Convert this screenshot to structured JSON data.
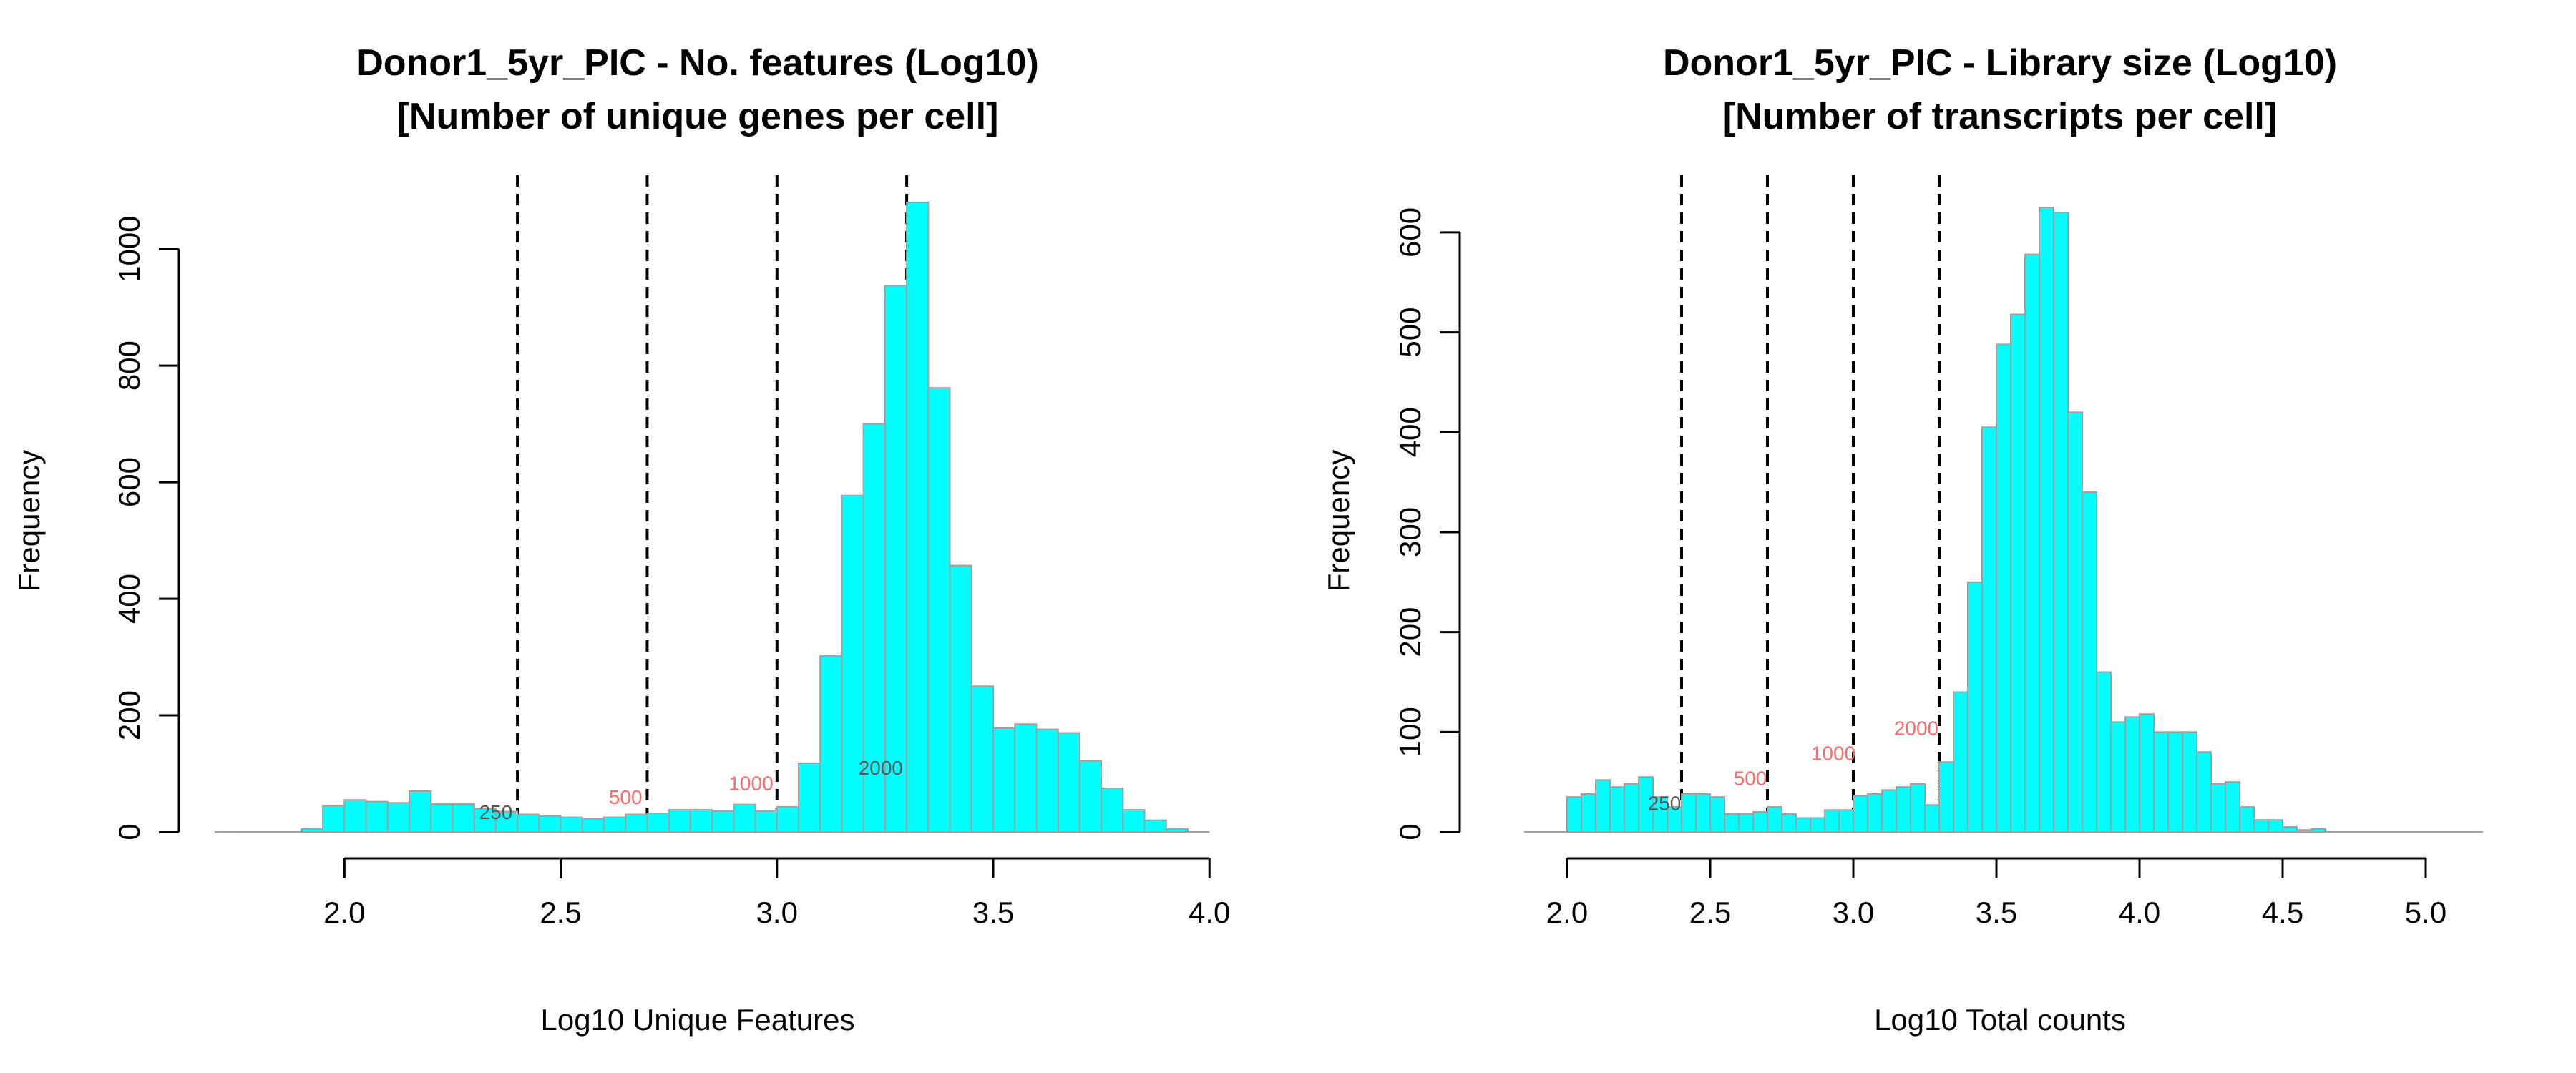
{
  "colors": {
    "bar_fill": "#00FFFF",
    "bar_stroke": "#A0A0A0",
    "cutoff_line": "#000000",
    "cut_label_low": "#555555",
    "cut_label_high": "#FF6B6B"
  },
  "chart_data": [
    {
      "type": "bar",
      "title": "Donor1_5yr_PIC - No. features (Log10)",
      "subtitle": "[Number of unique genes per cell]",
      "xlabel": "Log10 Unique Features",
      "ylabel": "Frequency",
      "xlim": [
        1.7,
        3.95
      ],
      "ylim": [
        0,
        1080
      ],
      "x_ticks": [
        2.0,
        2.5,
        3.0,
        3.5,
        4.0
      ],
      "x_tick_labels": [
        "2.0",
        "2.5",
        "3.0",
        "3.5",
        "4.0"
      ],
      "y_ticks": [
        0,
        200,
        400,
        600,
        800,
        1000
      ],
      "y_tick_labels": [
        "0",
        "200",
        "400",
        "600",
        "800",
        "1000"
      ],
      "bin_start": 1.7,
      "bin_width": 0.05,
      "values": [
        0,
        0,
        0,
        0,
        5,
        45,
        55,
        52,
        50,
        70,
        48,
        48,
        40,
        35,
        30,
        27,
        25,
        22,
        25,
        30,
        32,
        38,
        38,
        36,
        47,
        36,
        43,
        118,
        302,
        577,
        700,
        937,
        1080,
        762,
        457,
        250,
        178,
        185,
        176,
        170,
        122,
        75,
        38,
        20,
        5,
        0
      ],
      "cutoffs": [
        {
          "x": 2.4,
          "label": "250",
          "label_x": 2.35,
          "label_y": 22,
          "color": "#555555"
        },
        {
          "x": 2.7,
          "label": "500",
          "label_x": 2.65,
          "label_y": 48,
          "color": "#FF6B6B"
        },
        {
          "x": 3.0,
          "label": "1000",
          "label_x": 2.94,
          "label_y": 72,
          "color": "#FF6B6B"
        },
        {
          "x": 3.3,
          "label": "2000",
          "label_x": 3.24,
          "label_y": 98,
          "color": "#555555"
        }
      ]
    },
    {
      "type": "bar",
      "title": "Donor1_5yr_PIC - Library size (Log10)",
      "subtitle": "[Number of transcripts per cell]",
      "xlabel": "Log10 Total counts",
      "ylabel": "Frequency",
      "xlim": [
        1.85,
        5.2
      ],
      "ylim": [
        0,
        630
      ],
      "x_ticks": [
        2.0,
        2.5,
        3.0,
        3.5,
        4.0,
        4.5,
        5.0
      ],
      "x_tick_labels": [
        "2.0",
        "2.5",
        "3.0",
        "3.5",
        "4.0",
        "4.5",
        "5.0"
      ],
      "y_ticks": [
        0,
        100,
        200,
        300,
        400,
        500,
        600
      ],
      "y_tick_labels": [
        "0",
        "100",
        "200",
        "300",
        "400",
        "500",
        "600"
      ],
      "bin_start": 1.85,
      "bin_width": 0.05,
      "values": [
        0,
        0,
        0,
        35,
        38,
        52,
        45,
        48,
        55,
        35,
        25,
        38,
        38,
        35,
        18,
        18,
        20,
        25,
        18,
        14,
        14,
        22,
        22,
        36,
        38,
        42,
        45,
        48,
        27,
        70,
        140,
        250,
        405,
        488,
        518,
        578,
        625,
        620,
        420,
        340,
        160,
        110,
        115,
        118,
        100,
        100,
        100,
        80,
        48,
        50,
        25,
        12,
        12,
        5,
        2,
        3,
        0,
        0,
        0,
        0,
        0,
        0,
        0,
        0,
        0,
        0,
        0
      ],
      "cutoffs": [
        {
          "x": 2.4,
          "label": "250",
          "label_x": 2.34,
          "label_y": 22,
          "color": "#555555"
        },
        {
          "x": 2.7,
          "label": "500",
          "label_x": 2.64,
          "label_y": 47,
          "color": "#FF6B6B"
        },
        {
          "x": 3.0,
          "label": "1000",
          "label_x": 2.93,
          "label_y": 72,
          "color": "#FF6B6B"
        },
        {
          "x": 3.3,
          "label": "2000",
          "label_x": 3.22,
          "label_y": 97,
          "color": "#FF6B6B"
        }
      ]
    }
  ]
}
